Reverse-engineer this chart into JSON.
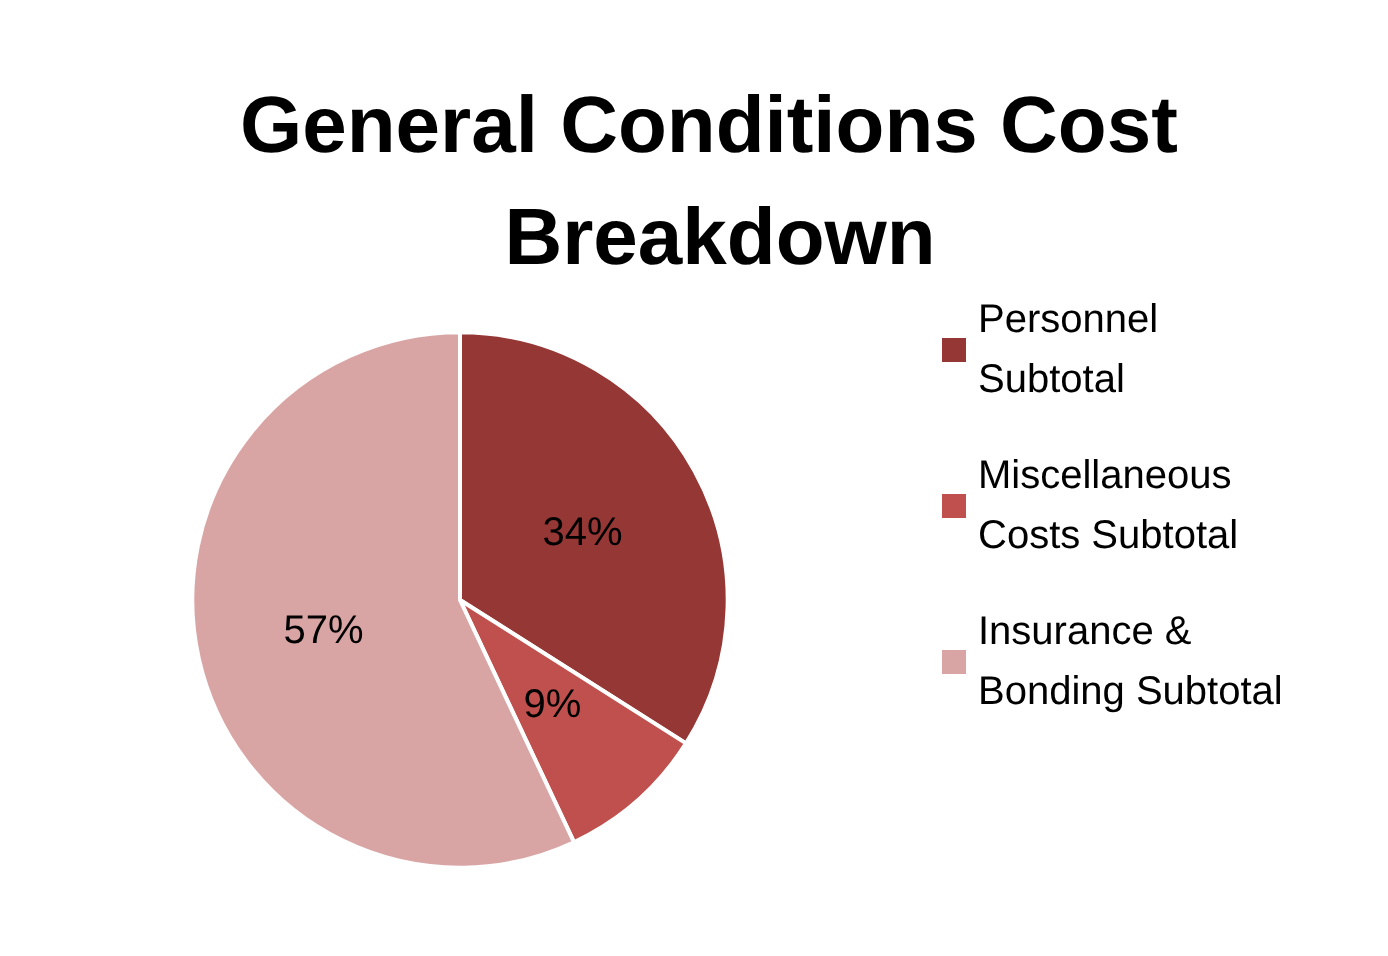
{
  "chart_data": {
    "type": "pie",
    "title": "General Conditions Cost Breakdown",
    "categories": [
      "Personnel Subtotal",
      "Miscellaneous Costs Subtotal",
      "Insurance & Bonding Subtotal"
    ],
    "values": [
      34,
      9,
      57
    ],
    "colors": [
      "#953735",
      "#c0504d",
      "#d9a5a4"
    ],
    "value_labels": [
      "34%",
      "9%",
      "57%"
    ],
    "legend": "right"
  }
}
